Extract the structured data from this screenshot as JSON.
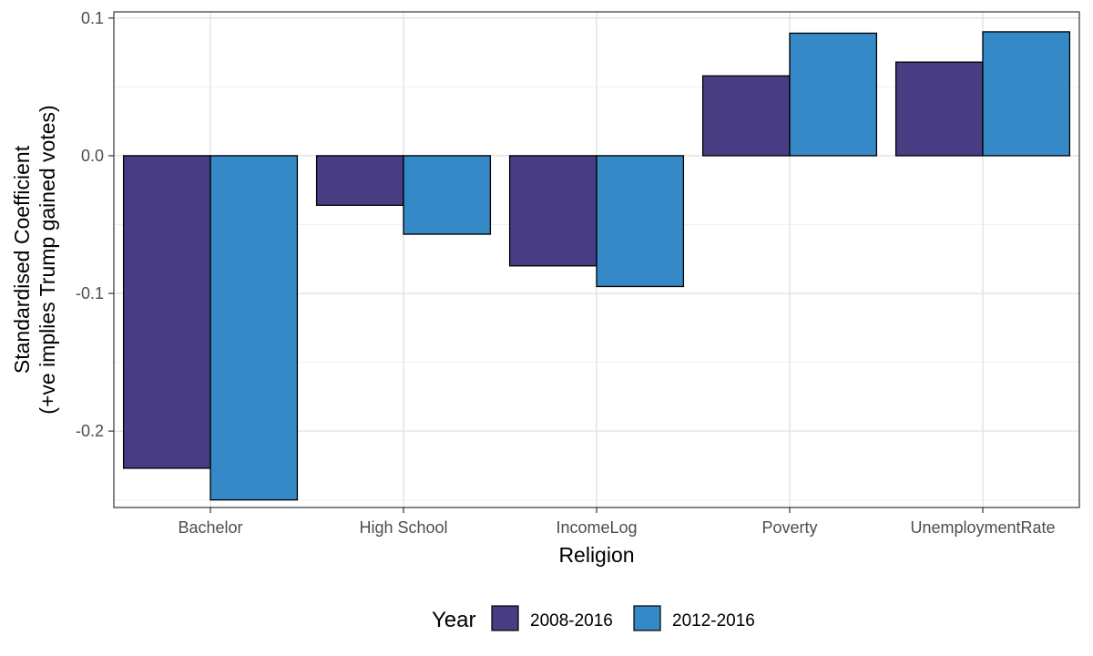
{
  "chart_data": {
    "type": "bar",
    "title": "",
    "xlabel": "Religion",
    "ylabel_line1": "Standardised Coefficient",
    "ylabel_line2": "(+ve implies Trump gained votes)",
    "categories": [
      "Bachelor",
      "High School",
      "IncomeLog",
      "Poverty",
      "UnemploymentRate"
    ],
    "series": [
      {
        "name": "2008-2016",
        "color": "#483d82",
        "values": [
          -0.227,
          -0.036,
          -0.08,
          0.058,
          0.068
        ]
      },
      {
        "name": "2012-2016",
        "color": "#3489c6",
        "values": [
          -0.25,
          -0.057,
          -0.095,
          0.089,
          0.09
        ]
      }
    ],
    "ylim": [
      -0.2555,
      0.1045
    ],
    "y_ticks": [
      {
        "value": 0.1,
        "label": "0.1"
      },
      {
        "value": 0.0,
        "label": "0.0"
      },
      {
        "value": -0.1,
        "label": "-0.1"
      },
      {
        "value": -0.2,
        "label": "-0.2"
      }
    ],
    "grid": true,
    "legend": {
      "title": "Year",
      "position": "bottom"
    }
  }
}
